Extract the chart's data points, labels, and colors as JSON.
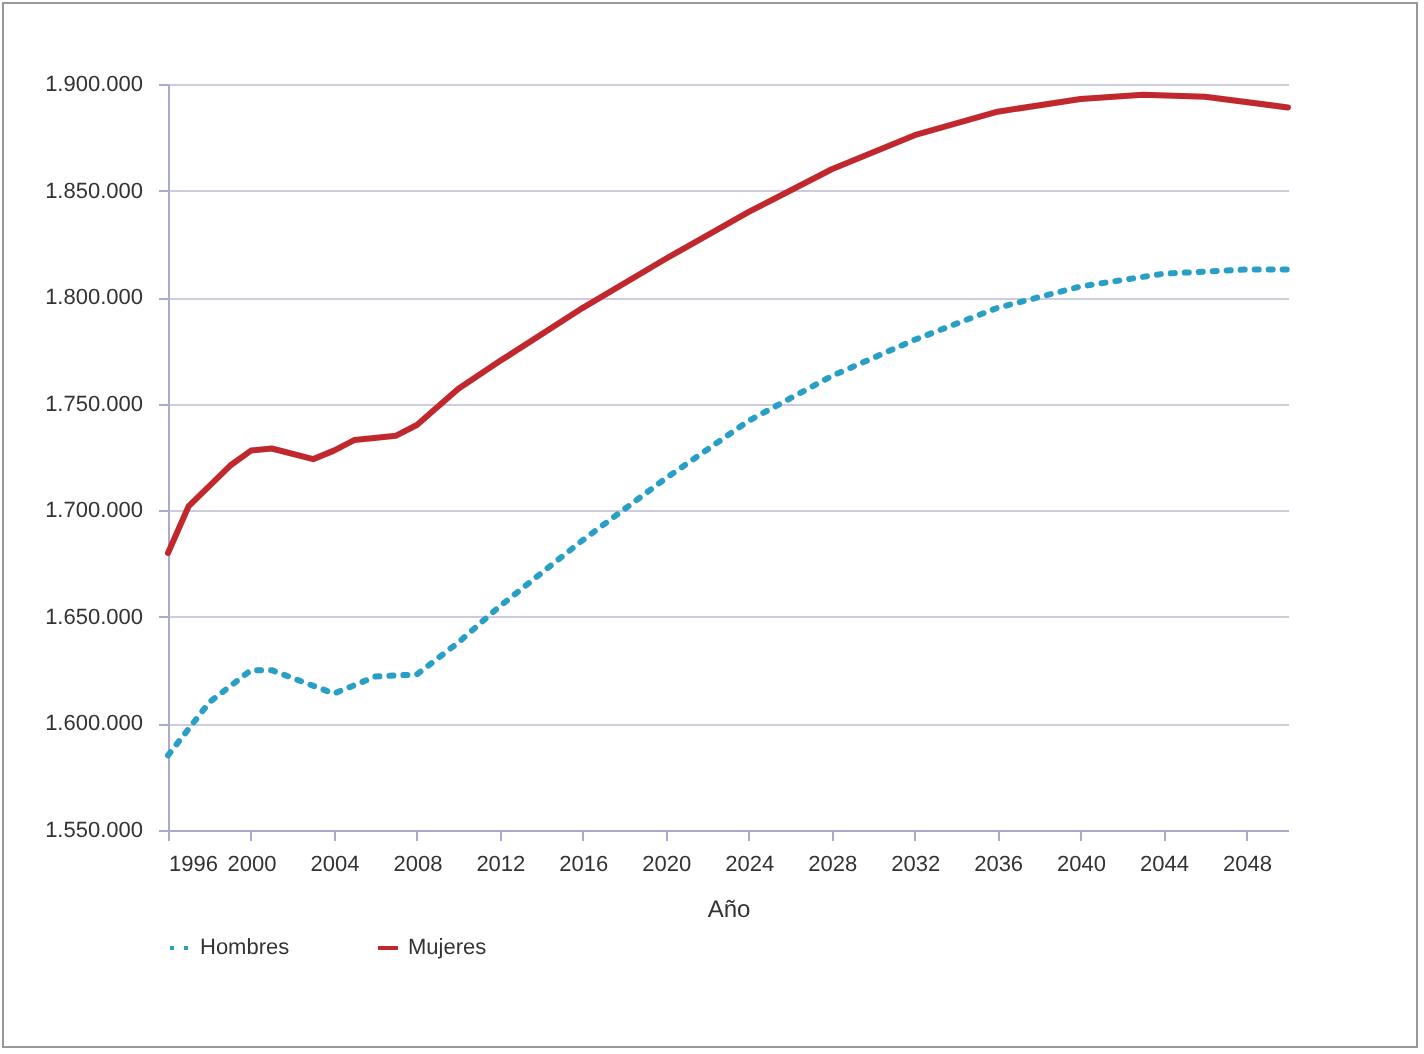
{
  "chart_data": {
    "type": "line",
    "xlabel": "Año",
    "xlim": [
      1996,
      2050
    ],
    "xticks": [
      1996,
      2000,
      2004,
      2008,
      2012,
      2016,
      2020,
      2024,
      2028,
      2032,
      2036,
      2040,
      2044,
      2048
    ],
    "ylim": [
      1550000,
      1900000
    ],
    "yticks": [
      {
        "value": 1550000,
        "label": "1.550.000"
      },
      {
        "value": 1600000,
        "label": "1.600.000"
      },
      {
        "value": 1650000,
        "label": "1.650.000"
      },
      {
        "value": 1700000,
        "label": "1.700.000"
      },
      {
        "value": 1750000,
        "label": "1.750.000"
      },
      {
        "value": 1800000,
        "label": "1.800.000"
      },
      {
        "value": 1850000,
        "label": "1.850.000"
      },
      {
        "value": 1900000,
        "label": "1.900.000"
      }
    ],
    "grid": "y",
    "legend": "bottom",
    "marker": "none",
    "series": [
      {
        "name": "Hombres",
        "color": "#2a9fc6",
        "line_style": "dotted",
        "x": [
          1996,
          1998,
          2000,
          2001,
          2004,
          2006,
          2008,
          2010,
          2012,
          2016,
          2020,
          2024,
          2028,
          2032,
          2036,
          2040,
          2044,
          2048,
          2050
        ],
        "values": [
          1585000,
          1610000,
          1625000,
          1625000,
          1614000,
          1622000,
          1623000,
          1638000,
          1655000,
          1686000,
          1715000,
          1742000,
          1763000,
          1780000,
          1795000,
          1805000,
          1811000,
          1813000,
          1813000
        ]
      },
      {
        "name": "Mujeres",
        "color": "#c0282d",
        "line_style": "solid",
        "x": [
          1996,
          1997,
          1999,
          2000,
          2001,
          2003,
          2004,
          2005,
          2007,
          2008,
          2010,
          2012,
          2016,
          2020,
          2024,
          2028,
          2032,
          2036,
          2040,
          2043,
          2046,
          2050
        ],
        "values": [
          1680000,
          1702000,
          1721000,
          1728000,
          1729000,
          1724000,
          1728000,
          1733000,
          1735000,
          1740000,
          1757000,
          1770000,
          1795000,
          1818000,
          1840000,
          1860000,
          1876000,
          1887000,
          1893000,
          1895000,
          1894000,
          1889000
        ]
      }
    ]
  }
}
